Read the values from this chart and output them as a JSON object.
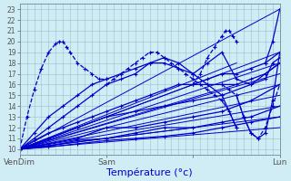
{
  "xlabel": "Température (°c)",
  "bg_color": "#d0ecf4",
  "grid_color": "#9bbfcc",
  "line_color": "#0000cc",
  "xlim": [
    0,
    72
  ],
  "ylim": [
    9.5,
    23.5
  ],
  "yticks": [
    10,
    11,
    12,
    13,
    14,
    15,
    16,
    17,
    18,
    19,
    20,
    21,
    22,
    23
  ],
  "xtick_positions": [
    0,
    24,
    48,
    72
  ],
  "xtick_labels": [
    "VenDim",
    "Sam",
    "",
    "Lun"
  ],
  "curves": [
    {
      "x": [
        0,
        2,
        4,
        6,
        8,
        10,
        11,
        12,
        13,
        14,
        16,
        18,
        20,
        22,
        24
      ],
      "y": [
        10,
        13,
        15.5,
        17.5,
        19,
        19.8,
        20,
        20,
        19.5,
        19,
        18,
        17.5,
        17,
        16.5,
        16.5
      ],
      "dashed": true
    },
    {
      "x": [
        0,
        4,
        8,
        12,
        16,
        20,
        24,
        28,
        32,
        36,
        40,
        44,
        48,
        52,
        56,
        60
      ],
      "y": [
        10,
        11.5,
        13,
        14,
        15,
        16,
        16.5,
        17,
        17.5,
        18,
        18,
        17.5,
        17,
        16,
        15,
        12
      ],
      "dashed": false
    },
    {
      "x": [
        0,
        4,
        8,
        12,
        16,
        20,
        24,
        28,
        32,
        36,
        40,
        44,
        48
      ],
      "y": [
        10,
        11,
        12,
        13,
        14,
        15,
        16,
        16.5,
        17,
        18,
        18.5,
        18,
        17
      ],
      "dashed": false
    },
    {
      "x": [
        0,
        4,
        8,
        12,
        16,
        20,
        24,
        28,
        32,
        36,
        40,
        44,
        48,
        52,
        56,
        60,
        64,
        68,
        72
      ],
      "y": [
        10,
        10.8,
        11.5,
        12,
        12.5,
        13,
        13.5,
        14,
        14.5,
        15,
        15.5,
        16,
        16,
        16,
        16,
        16,
        16.5,
        17,
        18
      ],
      "dashed": false
    },
    {
      "x": [
        0,
        8,
        16,
        24,
        32,
        40,
        48,
        56,
        64,
        72
      ],
      "y": [
        10,
        11,
        12,
        13,
        13.5,
        14,
        14.5,
        15,
        16,
        18
      ],
      "dashed": false
    },
    {
      "x": [
        0,
        8,
        16,
        24,
        32,
        40,
        48,
        56,
        64,
        72
      ],
      "y": [
        10,
        10.5,
        11,
        12,
        12,
        12.5,
        13,
        13.5,
        14.5,
        16
      ],
      "dashed": false
    },
    {
      "x": [
        0,
        8,
        16,
        24,
        32,
        40,
        48,
        56,
        64,
        72
      ],
      "y": [
        10,
        10.3,
        10.8,
        11,
        11.5,
        12,
        12,
        12.5,
        13,
        14
      ],
      "dashed": false
    },
    {
      "x": [
        0,
        8,
        16,
        24,
        32,
        40,
        48,
        56,
        64,
        72
      ],
      "y": [
        10,
        10.2,
        10.5,
        10.8,
        11,
        11.2,
        11.5,
        12,
        12.5,
        13
      ],
      "dashed": false
    },
    {
      "x": [
        24,
        26,
        28,
        30,
        32,
        34,
        36,
        38,
        40,
        42,
        44,
        46,
        48,
        50,
        52,
        54,
        56,
        58,
        60
      ],
      "y": [
        16,
        16.5,
        17,
        17.5,
        18,
        18.5,
        19,
        19,
        18.5,
        18,
        17.5,
        17,
        16.5,
        16,
        15.5,
        15,
        14.5,
        13.5,
        12
      ],
      "dashed": true
    },
    {
      "x": [
        48,
        50,
        52,
        54,
        56,
        57,
        58,
        59,
        60
      ],
      "y": [
        16,
        17,
        18.5,
        19.5,
        20.5,
        21,
        21,
        20.5,
        20
      ],
      "dashed": true
    },
    {
      "x": [
        48,
        52,
        56,
        60,
        64,
        68,
        70,
        72
      ],
      "y": [
        17,
        18,
        19,
        16.5,
        16,
        16.5,
        18,
        18.5
      ],
      "dashed": false
    },
    {
      "x": [
        48,
        52,
        56,
        60,
        64,
        68,
        72
      ],
      "y": [
        16,
        16.5,
        17,
        17,
        17.5,
        18,
        19
      ],
      "dashed": false
    },
    {
      "x": [
        56,
        58,
        60,
        62,
        64,
        66,
        68,
        70,
        72
      ],
      "y": [
        16,
        15.5,
        15,
        13,
        11.5,
        11,
        12,
        14,
        16
      ],
      "dashed": true
    },
    {
      "x": [
        60,
        62,
        64,
        66,
        68,
        70,
        72
      ],
      "y": [
        15,
        13,
        11.5,
        11,
        11.5,
        14.5,
        19
      ],
      "dashed": false
    },
    {
      "x": [
        68,
        70,
        72
      ],
      "y": [
        18,
        20,
        23
      ],
      "dashed": false
    }
  ],
  "fan_lines": [
    [
      0,
      10,
      72,
      23
    ],
    [
      0,
      10,
      72,
      19
    ],
    [
      0,
      10,
      72,
      18
    ],
    [
      0,
      10,
      72,
      17
    ],
    [
      0,
      10,
      72,
      16
    ],
    [
      0,
      10,
      72,
      15
    ],
    [
      0,
      10,
      72,
      14
    ],
    [
      0,
      10,
      72,
      13
    ],
    [
      0,
      10,
      72,
      12
    ],
    [
      0,
      10,
      60,
      18
    ],
    [
      0,
      10,
      48,
      16
    ],
    [
      0,
      10,
      60,
      16
    ],
    [
      0,
      10,
      48,
      12
    ]
  ]
}
